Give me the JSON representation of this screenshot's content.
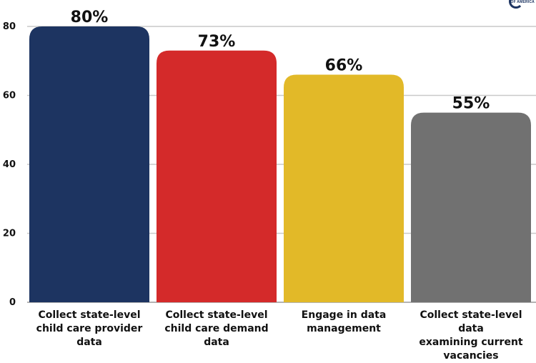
{
  "logo": {
    "text": "OF AMERICA"
  },
  "chart_data": {
    "type": "bar",
    "title": "",
    "xlabel": "",
    "ylabel": "",
    "ylim": [
      0,
      80
    ],
    "yticks": [
      0,
      20,
      40,
      60,
      80
    ],
    "grid": true,
    "categories": [
      "Collect state-level child care provider data",
      "Collect state-level child care demand data",
      "Engage in data management",
      "Collect state-level data examining current vacancies"
    ],
    "category_lines": [
      [
        "Collect state-level",
        "child care provider",
        "data"
      ],
      [
        "Collect state-level",
        "child care demand",
        "data"
      ],
      [
        "Engage in data",
        "management"
      ],
      [
        "Collect state-level data",
        "examining current",
        "vacancies"
      ]
    ],
    "values": [
      80,
      73,
      66,
      55
    ],
    "data_labels": [
      "80%",
      "73%",
      "66%",
      "55%"
    ],
    "colors": [
      "#1d3461",
      "#d42a2a",
      "#e2b928",
      "#717171"
    ]
  }
}
